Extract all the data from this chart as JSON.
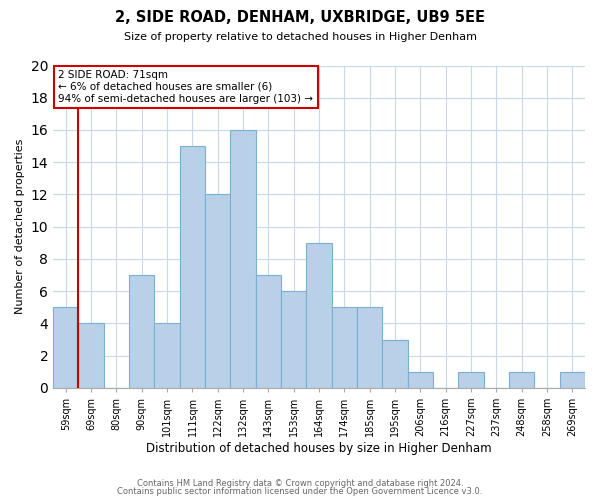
{
  "title": "2, SIDE ROAD, DENHAM, UXBRIDGE, UB9 5EE",
  "subtitle": "Size of property relative to detached houses in Higher Denham",
  "xlabel": "Distribution of detached houses by size in Higher Denham",
  "ylabel": "Number of detached properties",
  "bar_labels": [
    "59sqm",
    "69sqm",
    "80sqm",
    "90sqm",
    "101sqm",
    "111sqm",
    "122sqm",
    "132sqm",
    "143sqm",
    "153sqm",
    "164sqm",
    "174sqm",
    "185sqm",
    "195sqm",
    "206sqm",
    "216sqm",
    "227sqm",
    "237sqm",
    "248sqm",
    "258sqm",
    "269sqm"
  ],
  "bar_values": [
    5,
    4,
    0,
    7,
    4,
    15,
    12,
    16,
    7,
    6,
    9,
    5,
    5,
    3,
    1,
    0,
    1,
    0,
    1,
    0,
    1
  ],
  "bar_color": "#b8d0e8",
  "bar_edge_color": "#7ab0d4",
  "ylim": [
    0,
    20
  ],
  "yticks": [
    0,
    2,
    4,
    6,
    8,
    10,
    12,
    14,
    16,
    18,
    20
  ],
  "vline_color": "#cc0000",
  "annotation_title": "2 SIDE ROAD: 71sqm",
  "annotation_line1": "← 6% of detached houses are smaller (6)",
  "annotation_line2": "94% of semi-detached houses are larger (103) →",
  "annotation_box_color": "#ffffff",
  "annotation_box_edge_color": "#cc0000",
  "footer1": "Contains HM Land Registry data © Crown copyright and database right 2024.",
  "footer2": "Contains public sector information licensed under the Open Government Licence v3.0.",
  "background_color": "#ffffff",
  "grid_color": "#c8d8e8"
}
